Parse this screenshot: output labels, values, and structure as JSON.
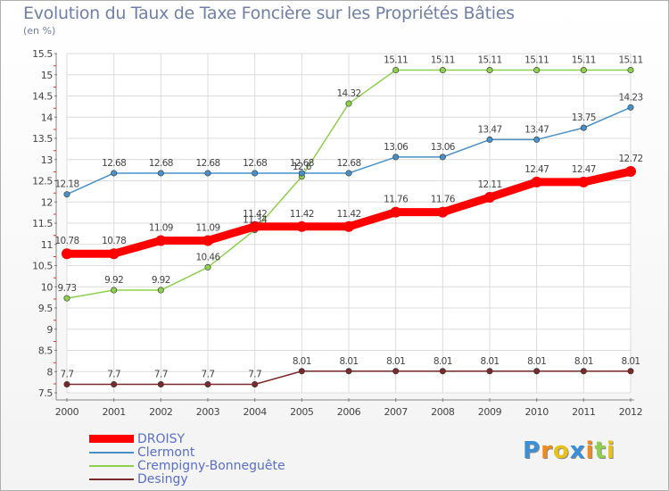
{
  "header": {
    "title": "Evolution du Taux de Taxe Foncière sur les Propriétés Bâties",
    "unit": "(en %)"
  },
  "chart_data": {
    "type": "line",
    "title": "Evolution du Taux de Taxe Foncière sur les Propriétés Bâties",
    "ylabel": "(en %)",
    "ylim": [
      7.5,
      15.5
    ],
    "yticks": [
      7.5,
      8,
      8.5,
      9,
      9.5,
      10,
      10.5,
      11,
      11.5,
      12,
      12.5,
      13,
      13.5,
      14,
      14.5,
      15,
      15.5
    ],
    "ytick_labels": [
      "7.5",
      "8",
      "8.5",
      "9",
      "9.5",
      "10",
      "10.5",
      "11",
      "11.5",
      "12",
      "12.5",
      "13",
      "13.5",
      "14",
      "14.5",
      "15",
      "15.5"
    ],
    "x": [
      "2000",
      "2001",
      "2002",
      "2003",
      "2004",
      "2005",
      "2006",
      "2007",
      "2008",
      "2009",
      "2010",
      "2011",
      "2012"
    ],
    "grid": true,
    "legend_position": "bottom-left",
    "series": [
      {
        "name": "DROISY",
        "color": "#ff0000",
        "values": [
          10.78,
          10.78,
          11.09,
          11.09,
          11.42,
          11.42,
          11.42,
          11.76,
          11.76,
          12.11,
          12.47,
          12.47,
          12.72
        ],
        "labels": [
          "10.78",
          "10.78",
          "11.09",
          "11.09",
          "11.42",
          "11.42",
          "11.42",
          "11.76",
          "11.76",
          "12.11",
          "12.47",
          "12.47",
          "12.72"
        ]
      },
      {
        "name": "Clermont",
        "color": "#4a90c8",
        "values": [
          12.18,
          12.68,
          12.68,
          12.68,
          12.68,
          12.68,
          12.68,
          13.06,
          13.06,
          13.47,
          13.47,
          13.75,
          14.23
        ],
        "labels": [
          "12.18",
          "12.68",
          "12.68",
          "12.68",
          "12.68",
          "12.68",
          "12.68",
          "13.06",
          "13.06",
          "13.47",
          "13.47",
          "13.75",
          "14.23"
        ]
      },
      {
        "name": "Crempigny-Bonneguête",
        "color": "#8ed04e",
        "values": [
          9.73,
          9.92,
          9.92,
          10.46,
          11.34,
          12.6,
          14.32,
          15.11,
          15.11,
          15.11,
          15.11,
          15.11,
          15.11
        ],
        "labels": [
          "9.73",
          "9.92",
          "9.92",
          "10.46",
          "11.34",
          "12.6",
          "14.32",
          "15.11",
          "15.11",
          "15.11",
          "15.11",
          "15.11",
          "15.11"
        ]
      },
      {
        "name": "Desingy",
        "color": "#7a2a2a",
        "values": [
          7.7,
          7.7,
          7.7,
          7.7,
          7.7,
          8.01,
          8.01,
          8.01,
          8.01,
          8.01,
          8.01,
          8.01,
          8.01
        ],
        "labels": [
          "7.7",
          "7.7",
          "7.7",
          "7.7",
          "7.7",
          "8.01",
          "8.01",
          "8.01",
          "8.01",
          "8.01",
          "8.01",
          "8.01",
          "8.01"
        ]
      }
    ]
  },
  "legend": {
    "items": [
      {
        "label": "DROISY",
        "color": "#ff0000",
        "thickness": "thick"
      },
      {
        "label": "Clermont",
        "color": "#4a90c8",
        "thickness": "thin"
      },
      {
        "label": "Crempigny-Bonneguête",
        "color": "#8ed04e",
        "thickness": "thin"
      },
      {
        "label": "Desingy",
        "color": "#7a2a2a",
        "thickness": "thin"
      }
    ]
  },
  "logo": {
    "text": "Proxiti",
    "letters": [
      {
        "ch": "P",
        "color": "#3a8fd8"
      },
      {
        "ch": "r",
        "color": "#f08a1c"
      },
      {
        "ch": "o",
        "color": "#e8c21c"
      },
      {
        "ch": "x",
        "color": "#3a8fd8"
      },
      {
        "ch": "i",
        "color": "#f08a1c"
      },
      {
        "ch": "t",
        "color": "#8ed04e"
      },
      {
        "ch": "i",
        "color": "#e8c21c"
      }
    ]
  }
}
